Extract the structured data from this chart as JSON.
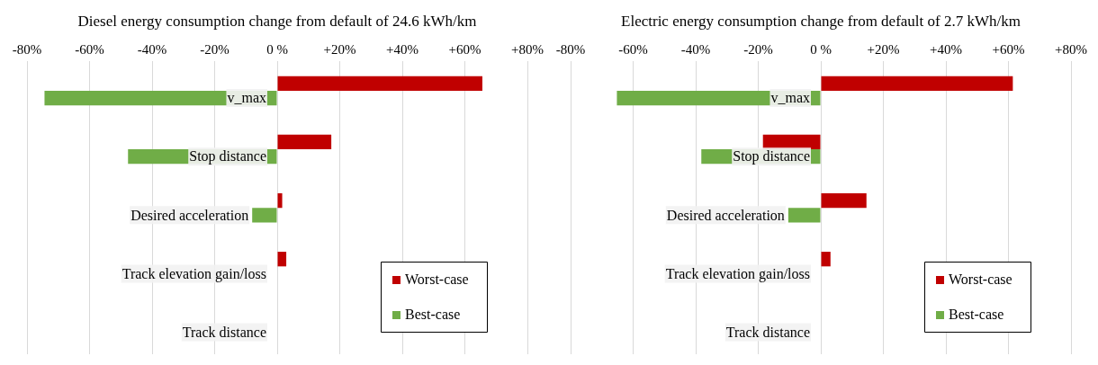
{
  "chart_data": [
    {
      "type": "bar",
      "orientation": "horizontal",
      "title": "Diesel energy consumption change from default of 24.6 kWh/km",
      "categories": [
        "v_max",
        "Stop distance",
        "Desired acceleration",
        "Track elevation gain/loss",
        "Track distance"
      ],
      "series": [
        {
          "name": "Worst-case",
          "color": "#c00000",
          "values": [
            65.6,
            17.3,
            1.6,
            2.9,
            0
          ]
        },
        {
          "name": "Best-case",
          "color": "#70ad47",
          "values": [
            -74.4,
            -47.7,
            -8.0,
            0,
            0
          ]
        }
      ],
      "xlim": [
        -80,
        80
      ],
      "xticks": [
        {
          "value": -80,
          "label": "-80%"
        },
        {
          "value": -60,
          "label": "-60%"
        },
        {
          "value": -40,
          "label": "-40%"
        },
        {
          "value": -20,
          "label": "-20%"
        },
        {
          "value": 0,
          "label": "0 %"
        },
        {
          "value": 20,
          "label": "+20%"
        },
        {
          "value": 40,
          "label": "+40%"
        },
        {
          "value": 60,
          "label": "+60%"
        },
        {
          "value": 80,
          "label": "+80%"
        }
      ],
      "grid": "x",
      "legend": "bottom right"
    },
    {
      "type": "bar",
      "orientation": "horizontal",
      "title": "Electric energy consumption change from default of 2.7 kWh/km",
      "categories": [
        "v_max",
        "Stop distance",
        "Desired acceleration",
        "Track elevation gain/loss",
        "Track distance"
      ],
      "series": [
        {
          "name": "Worst-case",
          "color": "#c00000",
          "values": [
            61.4,
            -18.5,
            14.6,
            3.1,
            0
          ]
        },
        {
          "name": "Best-case",
          "color": "#70ad47",
          "values": [
            -65.2,
            -38.2,
            -10.4,
            0,
            0
          ]
        }
      ],
      "xlim": [
        -80,
        80
      ],
      "xticks": [
        {
          "value": -80,
          "label": "-80%"
        },
        {
          "value": -60,
          "label": "-60%"
        },
        {
          "value": -40,
          "label": "-40%"
        },
        {
          "value": -20,
          "label": "-20%"
        },
        {
          "value": 0,
          "label": "0 %"
        },
        {
          "value": 20,
          "label": "+20%"
        },
        {
          "value": 40,
          "label": "+40%"
        },
        {
          "value": 60,
          "label": "+60%"
        },
        {
          "value": 80,
          "label": "+80%"
        }
      ],
      "grid": "x",
      "legend": "bottom right"
    }
  ]
}
